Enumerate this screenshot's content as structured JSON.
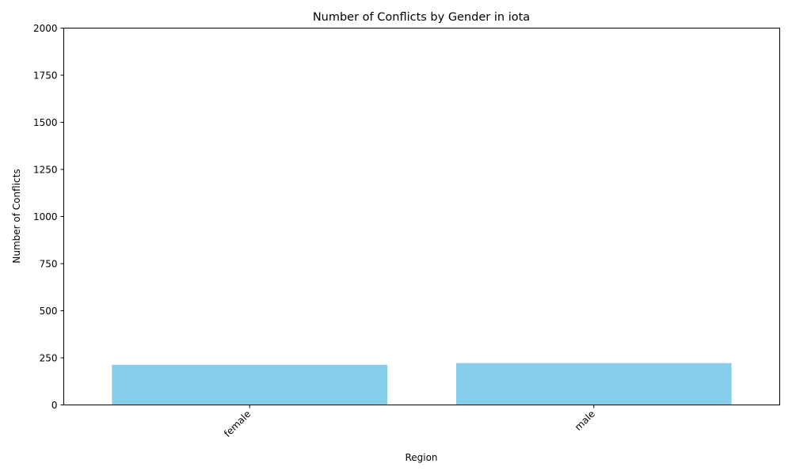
{
  "chart_data": {
    "type": "bar",
    "title": "Number of Conflicts by Gender in iota",
    "xlabel": "Region",
    "ylabel": "Number of Conflicts",
    "categories": [
      "female",
      "male"
    ],
    "values": [
      213,
      222
    ],
    "ylim": [
      0,
      2000
    ],
    "yticks": [
      0,
      250,
      500,
      750,
      1000,
      1250,
      1500,
      1750,
      2000
    ],
    "bar_color": "#87ceeb",
    "grid": false,
    "legend": "none",
    "x_tick_rotation": 45
  }
}
